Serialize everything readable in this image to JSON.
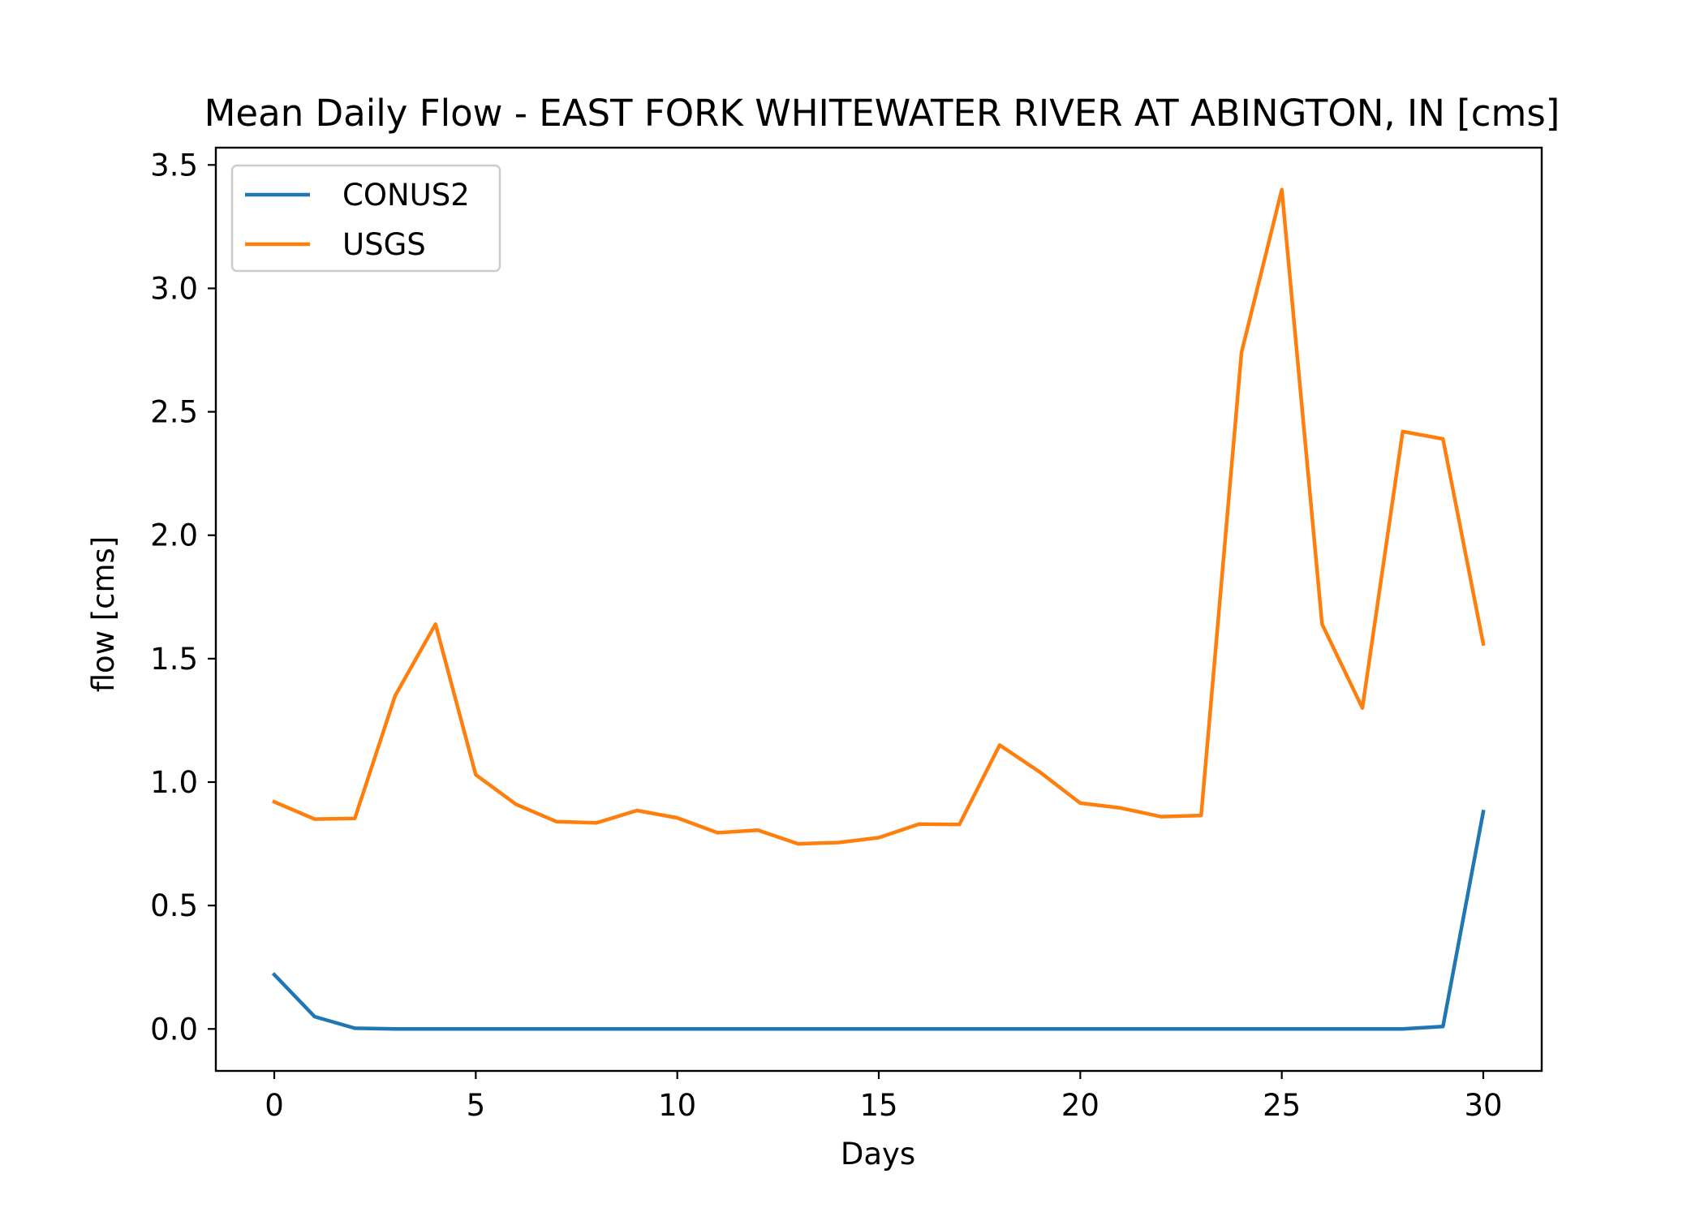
{
  "chart_data": {
    "type": "line",
    "title": "Mean Daily Flow - EAST FORK WHITEWATER RIVER AT ABINGTON, IN [cms]",
    "xlabel": "Days",
    "ylabel": "flow [cms]",
    "xlim": [
      -1.45,
      31.45
    ],
    "ylim": [
      -0.17,
      3.57
    ],
    "xticks": [
      0,
      5,
      10,
      15,
      20,
      25,
      30
    ],
    "xtick_labels": [
      "0",
      "5",
      "10",
      "15",
      "20",
      "25",
      "30"
    ],
    "yticks": [
      0.0,
      0.5,
      1.0,
      1.5,
      2.0,
      2.5,
      3.0,
      3.5
    ],
    "ytick_labels": [
      "0.0",
      "0.5",
      "1.0",
      "1.5",
      "2.0",
      "2.5",
      "3.0",
      "3.5"
    ],
    "grid": false,
    "legend_position": "upper-left",
    "x": [
      0,
      1,
      2,
      3,
      4,
      5,
      6,
      7,
      8,
      9,
      10,
      11,
      12,
      13,
      14,
      15,
      16,
      17,
      18,
      19,
      20,
      21,
      22,
      23,
      24,
      25,
      26,
      27,
      28,
      29,
      30
    ],
    "series": [
      {
        "name": "CONUS2",
        "color": "#1f77b4",
        "values": [
          0.22,
          0.05,
          0.003,
          0,
          0,
          0,
          0,
          0,
          0,
          0,
          0,
          0,
          0,
          0,
          0,
          0,
          0,
          0,
          0,
          0,
          0,
          0,
          0,
          0,
          0,
          0,
          0,
          0,
          0,
          0.01,
          0.88
        ]
      },
      {
        "name": "USGS",
        "color": "#ff7f0e",
        "values": [
          0.92,
          0.85,
          0.853,
          1.35,
          1.64,
          1.03,
          0.91,
          0.84,
          0.835,
          0.885,
          0.855,
          0.795,
          0.805,
          0.75,
          0.755,
          0.775,
          0.83,
          0.828,
          1.15,
          1.04,
          0.915,
          0.895,
          0.86,
          0.865,
          2.74,
          3.4,
          1.64,
          1.3,
          2.42,
          2.39,
          1.56
        ]
      }
    ]
  }
}
